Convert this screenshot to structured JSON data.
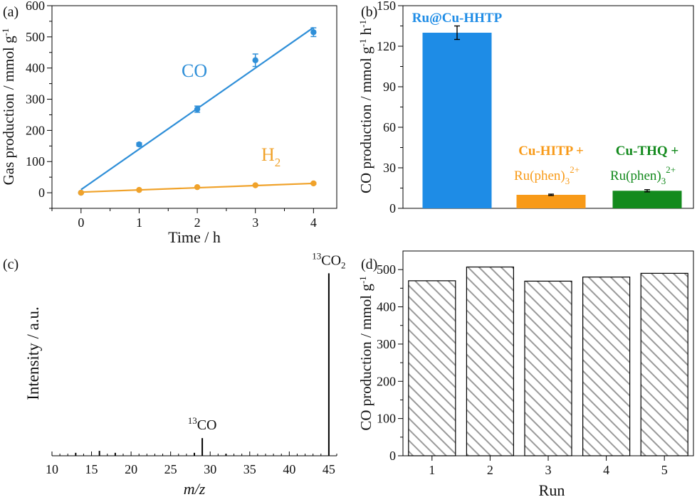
{
  "chart_data": [
    {
      "panel": "(a)",
      "type": "scatter",
      "xlabel": "Time / h",
      "ylabel_main": "Gas production / mmol g",
      "ylabel_sup": "-1",
      "xlim": [
        -0.5,
        4.4
      ],
      "ylim": [
        -50,
        600
      ],
      "xticks": [
        0,
        1,
        2,
        3,
        4
      ],
      "yticks": [
        0,
        100,
        200,
        300,
        400,
        500,
        600
      ],
      "series": [
        {
          "name": "CO",
          "label_main": "CO",
          "label_sub": "",
          "color": "#2f8fd8",
          "x": [
            0,
            1,
            2,
            3,
            4
          ],
          "y": [
            0,
            155,
            268,
            425,
            515
          ],
          "yerr": [
            0,
            5,
            10,
            20,
            14
          ],
          "fit": [
            [
              0,
              10
            ],
            [
              4,
              530
            ]
          ]
        },
        {
          "name": "H2",
          "label_main": "H",
          "label_sub": "2",
          "color": "#f0a22a",
          "x": [
            0,
            1,
            2,
            3,
            4
          ],
          "y": [
            0,
            9,
            18,
            24,
            30
          ],
          "yerr": [
            0,
            2,
            2,
            2,
            3
          ],
          "fit": [
            [
              0,
              2
            ],
            [
              4,
              30
            ]
          ]
        }
      ]
    },
    {
      "panel": "(b)",
      "type": "bar",
      "ylabel_main": "CO production / mmol g",
      "ylabel_sup1": "-1",
      "ylabel_mid": " h",
      "ylabel_sup2": "-1",
      "ylim": [
        0,
        150
      ],
      "yticks": [
        0,
        30,
        60,
        90,
        120,
        150
      ],
      "bars": [
        {
          "name": "Ru@Cu-HHTP",
          "line1": "Ru@Cu-HHTP",
          "line2_main": "",
          "line2_sub": "",
          "line2_sup": "",
          "value": 130,
          "err": 5,
          "color": "#1e8ce6"
        },
        {
          "name": "Cu-HITP + Ru(phen)3 2+",
          "line1": "Cu-HITP +",
          "line2_main": "Ru(phen)",
          "line2_sub": "3",
          "line2_sup": "2+",
          "value": 10,
          "err": 0.5,
          "color": "#f89a18"
        },
        {
          "name": "Cu-THQ + Ru(phen)3 2+",
          "line1": "Cu-THQ +",
          "line2_main": "Ru(phen)",
          "line2_sub": "3",
          "line2_sup": "2+",
          "value": 13,
          "err": 0.8,
          "color": "#138a1d"
        }
      ]
    },
    {
      "panel": "(c)",
      "type": "bar",
      "xlabel": "m/z",
      "ylabel": "Intensity / a.u.",
      "xlim": [
        10,
        46
      ],
      "xticks": [
        10,
        15,
        20,
        25,
        30,
        35,
        40,
        45
      ],
      "ylim": [
        0,
        100
      ],
      "peaks": [
        {
          "mz": 13,
          "intensity": 1.5
        },
        {
          "mz": 16,
          "intensity": 2.5
        },
        {
          "mz": 18,
          "intensity": 1.5
        },
        {
          "mz": 28,
          "intensity": 1.5
        },
        {
          "mz": 29,
          "intensity": 9
        },
        {
          "mz": 32,
          "intensity": 1
        },
        {
          "mz": 45,
          "intensity": 93
        }
      ],
      "annotations": [
        {
          "mz": 29,
          "sup": "13",
          "text": "CO",
          "sub": ""
        },
        {
          "mz": 45,
          "sup": "13",
          "text": "CO",
          "sub": "2"
        }
      ]
    },
    {
      "panel": "(d)",
      "type": "bar",
      "xlabel": "Run",
      "ylabel_main": "CO production / mmol g",
      "ylabel_sup": "-1",
      "categories": [
        "1",
        "2",
        "3",
        "4",
        "5"
      ],
      "values": [
        470,
        507,
        469,
        480,
        490
      ],
      "ylim": [
        0,
        550
      ],
      "yticks": [
        0,
        100,
        200,
        300,
        400,
        500
      ],
      "fill": "hatched"
    }
  ]
}
